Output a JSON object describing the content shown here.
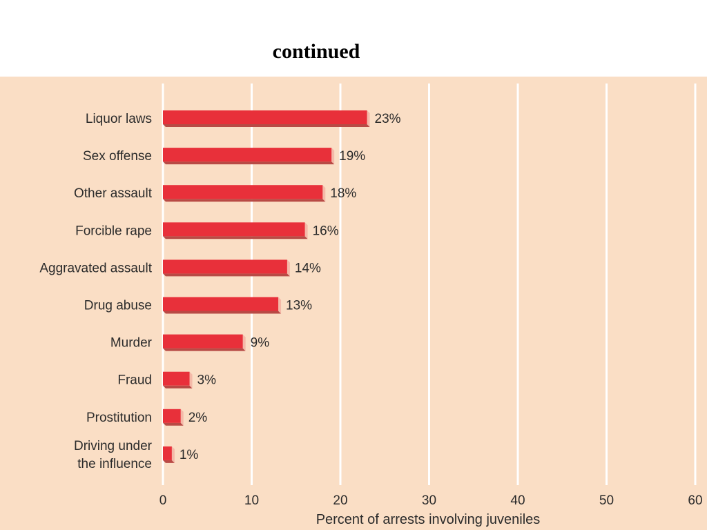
{
  "slide": {
    "title": "continued"
  },
  "chart_data": {
    "type": "bar",
    "orientation": "horizontal",
    "categories": [
      "Liquor laws",
      "Sex offense",
      "Other assault",
      "Forcible rape",
      "Aggravated assault",
      "Drug abuse",
      "Murder",
      "Fraud",
      "Prostitution",
      "Driving under\nthe influence"
    ],
    "values": [
      23,
      19,
      18,
      16,
      14,
      13,
      9,
      3,
      2,
      1
    ],
    "value_labels": [
      "23%",
      "19%",
      "18%",
      "16%",
      "14%",
      "13%",
      "9%",
      "3%",
      "2%",
      "1%"
    ],
    "xlabel": "Percent of arrests involving juveniles",
    "ylabel": "",
    "xlim": [
      0,
      60
    ],
    "xticks": [
      0,
      10,
      20,
      30,
      40,
      50,
      60
    ],
    "grid": true,
    "colors": {
      "bar": "#e8303a",
      "bar_side": "#b84a45",
      "background": "#fadec5",
      "grid": "#ffffff"
    }
  }
}
